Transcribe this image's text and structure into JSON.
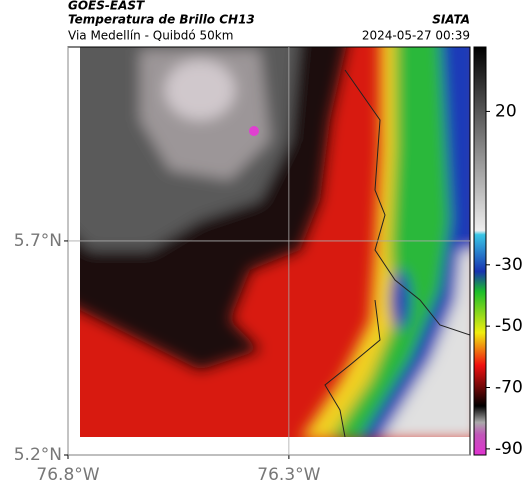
{
  "header": {
    "satellite": "GOES-EAST",
    "product": "Temperatura de Brillo CH13",
    "route": "Via Medellín - Quibdó 50km",
    "source": "SIATA",
    "timestamp": "2024-05-27 00:39"
  },
  "map": {
    "xlim": [
      -76.8,
      -75.89
    ],
    "ylim": [
      5.2,
      6.153
    ],
    "xticks": [
      {
        "value": -76.8,
        "label": "76.8°W"
      },
      {
        "value": -76.3,
        "label": "76.3°W"
      }
    ],
    "yticks": [
      {
        "value": 5.7,
        "label": "5.7°N"
      },
      {
        "value": 5.2,
        "label": "5.2°N"
      }
    ],
    "grid": true
  },
  "colorbar": {
    "lim": [
      -92,
      41
    ],
    "ticks": [
      20,
      -30,
      -50,
      -70,
      -90
    ]
  }
}
